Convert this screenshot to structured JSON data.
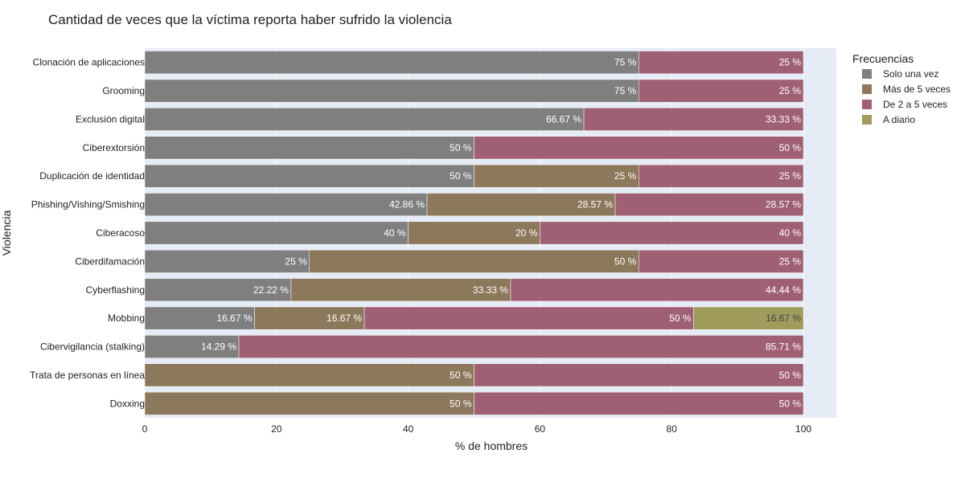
{
  "chart_data": {
    "type": "bar",
    "orientation": "horizontal",
    "barmode": "stack",
    "title": "Cantidad de veces que la víctima reporta haber sufrido la violencia",
    "xlabel": "% de hombres",
    "ylabel": "Violencia",
    "xlim": [
      0,
      105
    ],
    "xticks": [
      0,
      20,
      40,
      60,
      80,
      100
    ],
    "grid": true,
    "legend": {
      "title": "Frecuencias",
      "placement": "right"
    },
    "categories": [
      "Clonación de aplicaciones",
      "Grooming",
      "Exclusión digital",
      "Ciberextorsión",
      "Duplicación de identidad",
      "Phishing/Vishing/Smishing",
      "Ciberacoso",
      "Ciberdifamación",
      "Cyberflashing",
      "Mobbing",
      "Cibervigilancia (stalking)",
      "Trata de personas en línea",
      "Doxxing"
    ],
    "series": [
      {
        "name": "Solo una vez",
        "color": "#7f7f7f",
        "values": [
          75,
          75,
          66.67,
          50,
          50,
          42.86,
          40,
          25,
          22.22,
          16.67,
          14.29,
          0,
          0
        ],
        "labels": [
          "75 %",
          "75 %",
          "66.67 %",
          "50 %",
          "50 %",
          "42.86 %",
          "40 %",
          "25 %",
          "22.22 %",
          "16.67 %",
          "14.29 %",
          "",
          ""
        ]
      },
      {
        "name": "Más de 5 veces",
        "color": "#8c785b",
        "values": [
          0,
          0,
          0,
          0,
          25,
          28.57,
          20,
          50,
          33.33,
          16.67,
          0,
          50,
          50
        ],
        "labels": [
          "",
          "",
          "",
          "",
          "25 %",
          "28.57 %",
          "20 %",
          "50 %",
          "33.33 %",
          "16.67 %",
          "",
          "50 %",
          "50 %"
        ]
      },
      {
        "name": "De 2 a 5 veces",
        "color": "#a06074",
        "values": [
          25,
          25,
          33.33,
          50,
          25,
          28.57,
          40,
          25,
          44.44,
          50,
          85.71,
          50,
          50
        ],
        "labels": [
          "25 %",
          "25 %",
          "33.33 %",
          "50 %",
          "25 %",
          "28.57 %",
          "40 %",
          "25 %",
          "44.44 %",
          "50 %",
          "85.71 %",
          "50 %",
          "50 %"
        ]
      },
      {
        "name": "A diario",
        "color": "#a09c5c",
        "values": [
          0,
          0,
          0,
          0,
          0,
          0,
          0,
          0,
          0,
          16.67,
          0,
          0,
          0
        ],
        "labels": [
          "",
          "",
          "",
          "",
          "",
          "",
          "",
          "",
          "",
          "16.67 %",
          "",
          "",
          ""
        ]
      }
    ]
  }
}
